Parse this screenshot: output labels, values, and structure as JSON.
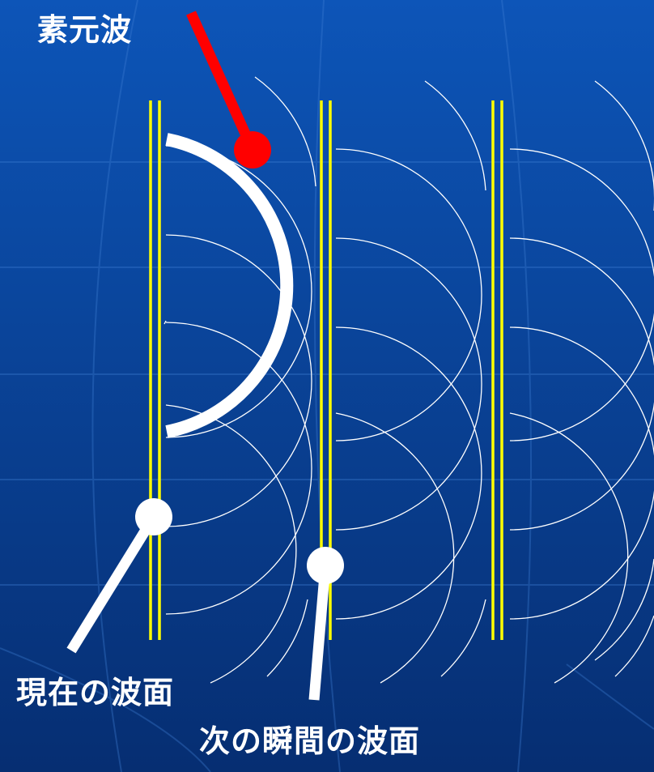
{
  "labels": {
    "elementary_wave": "素元波",
    "current_wavefront": "現在の波面",
    "next_wavefront": "次の瞬間の波面"
  },
  "colors": {
    "background_top": "#0d55b8",
    "background_bottom": "#062e72",
    "wavefront": "#ffff00",
    "wavelet_lines": "#ffffff",
    "elementary_wave_pointer": "#ff0000",
    "wavefront_pointers": "#ffffff"
  }
}
